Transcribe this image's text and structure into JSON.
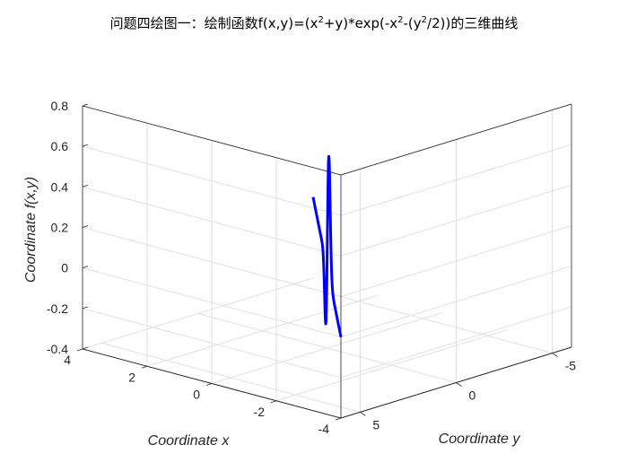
{
  "chart_data": {
    "type": "line",
    "title_parts": {
      "p1": "问题四绘图一：绘制函数f(x,y)=(x",
      "s1": "2",
      "p2": "+y)*exp(-x",
      "s2": "2",
      "p3": "-(y",
      "s3": "2",
      "p4": "/2))的三维曲线"
    },
    "xlabel": "Coordinate x",
    "ylabel": "Coordinate y",
    "zlabel": "Coordinate f(x,y)",
    "x_ticks": [
      "-4",
      "-2",
      "0",
      "2",
      "4"
    ],
    "y_ticks": [
      "-5",
      "0",
      "5"
    ],
    "z_ticks": [
      "-0.4",
      "-0.2",
      "0",
      "0.2",
      "0.4",
      "0.6",
      "0.8"
    ],
    "xlim": [
      -4,
      4
    ],
    "ylim": [
      -6,
      6
    ],
    "zlim": [
      -0.4,
      0.8
    ],
    "grid": true,
    "line_color": "#0000ff",
    "parametric_curve": {
      "x": "t",
      "y": "-1.5*t",
      "z": "(x^2 + y) * exp(-x^2 - y^2/2)",
      "t_range": [
        -4,
        4
      ]
    },
    "series": [
      {
        "x": [
          -4,
          -3,
          -2,
          -1.5,
          -1.2,
          -1,
          -0.8,
          -0.6,
          -0.4,
          -0.3,
          -0.2,
          -0.1,
          0,
          0.1,
          0.2,
          0.3,
          0.4,
          0.5,
          0.6,
          0.8,
          1,
          1.2,
          1.5,
          2,
          3,
          4
        ],
        "y": [
          6,
          4.5,
          3,
          2.25,
          1.8,
          1.5,
          1.2,
          0.9,
          0.6,
          0.45,
          0.3,
          0.15,
          0,
          -0.15,
          -0.3,
          -0.45,
          -0.6,
          -0.75,
          -0.9,
          -1.2,
          -1.5,
          -1.8,
          -2.25,
          -3,
          -4.5,
          -6
        ],
        "z": [
          0,
          0,
          0.0002,
          0.0097,
          0.044,
          0.0883,
          0.171,
          0.3,
          0.4,
          0.375,
          0.296,
          0.16,
          0,
          -0.138,
          -0.24,
          -0.267,
          -0.2,
          -0.05,
          0.145,
          0.455,
          0.529,
          0.349,
          0.0058,
          0.0001,
          0,
          0
        ]
      }
    ]
  }
}
